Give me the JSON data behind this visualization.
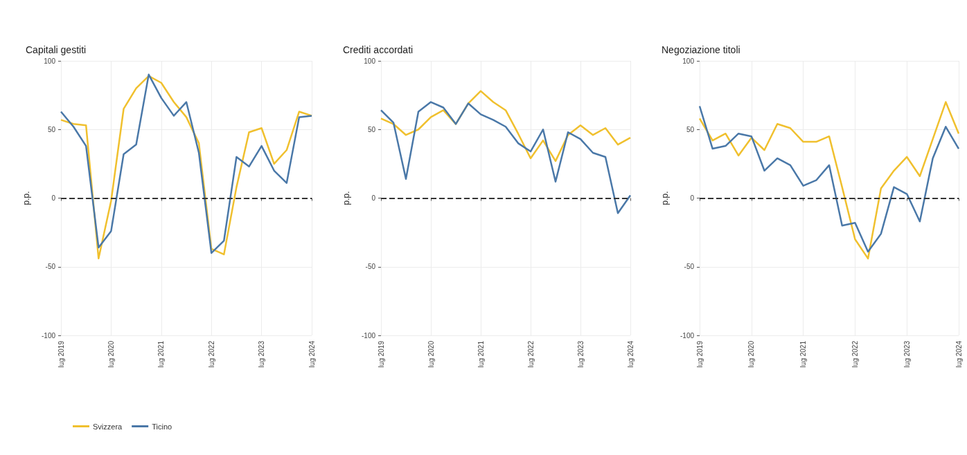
{
  "chart_data": [
    {
      "type": "line",
      "title": "Capitali gestiti",
      "ylabel": "p.p.",
      "categories": [
        "lug 2019",
        null,
        null,
        null,
        "lug 2020",
        null,
        null,
        null,
        "lug 2021",
        null,
        null,
        null,
        "lug 2022",
        null,
        null,
        null,
        "lug 2023",
        null,
        null,
        null,
        "lug 2024"
      ],
      "series": [
        {
          "name": "Svizzera",
          "color": "#f0c02e",
          "values": [
            57,
            54,
            53,
            -44,
            -2,
            65,
            80,
            89,
            84,
            70,
            59,
            40,
            -37,
            -41,
            8,
            48,
            51,
            25,
            35,
            63,
            60
          ]
        },
        {
          "name": "Ticino",
          "color": "#4a78a8",
          "values": [
            63,
            52,
            38,
            -36,
            -24,
            32,
            39,
            90,
            73,
            60,
            70,
            33,
            -40,
            -31,
            30,
            23,
            38,
            20,
            11,
            59,
            60
          ]
        }
      ],
      "ylim": [
        -100,
        100
      ],
      "yticks": [
        -100,
        -50,
        0,
        50,
        100
      ],
      "grid": true,
      "legend": "bottom left",
      "marker": "none",
      "line_style": "solid",
      "ref_lines": [
        {
          "axis": "y",
          "value": 0,
          "color": "#333333",
          "line_style": "dashed"
        }
      ]
    },
    {
      "type": "line",
      "title": "Crediti accordati",
      "ylabel": "p.p.",
      "categories": [
        "lug 2019",
        null,
        null,
        null,
        "lug 2020",
        null,
        null,
        null,
        "lug 2021",
        null,
        null,
        null,
        "lug 2022",
        null,
        null,
        null,
        "lug 2023",
        null,
        null,
        null,
        "lug 2024"
      ],
      "series": [
        {
          "color": "#f0c02e",
          "values": [
            58,
            54,
            46,
            50,
            59,
            64,
            54,
            69,
            78,
            70,
            64,
            47,
            29,
            42,
            27,
            46,
            53,
            46,
            51,
            39,
            44
          ]
        },
        {
          "color": "#4a78a8",
          "values": [
            64,
            55,
            14,
            63,
            70,
            66,
            54,
            69,
            61,
            57,
            52,
            40,
            34,
            50,
            12,
            48,
            43,
            33,
            30,
            -11,
            2
          ]
        }
      ],
      "ylim": [
        -100,
        100
      ],
      "yticks": [
        -100,
        -50,
        0,
        50,
        100
      ],
      "grid": true,
      "marker": "none",
      "line_style": "solid",
      "ref_lines": [
        {
          "axis": "y",
          "value": 0,
          "color": "#333333",
          "line_style": "dashed"
        }
      ]
    },
    {
      "type": "line",
      "title": "Negoziazione titoli",
      "ylabel": "p.p.",
      "categories": [
        "lug 2019",
        null,
        null,
        null,
        "lug 2020",
        null,
        null,
        null,
        "lug 2021",
        null,
        null,
        null,
        "lug 2022",
        null,
        null,
        null,
        "lug 2023",
        null,
        null,
        null,
        "lug 2024"
      ],
      "series": [
        {
          "color": "#f0c02e",
          "values": [
            58,
            42,
            47,
            31,
            44,
            35,
            54,
            51,
            41,
            41,
            45,
            8,
            -30,
            -44,
            7,
            20,
            30,
            16,
            43,
            70,
            47
          ]
        },
        {
          "color": "#4a78a8",
          "values": [
            67,
            36,
            38,
            47,
            45,
            20,
            29,
            24,
            9,
            13,
            24,
            -20,
            -18,
            -39,
            -26,
            8,
            3,
            -17,
            29,
            52,
            36
          ]
        }
      ],
      "ylim": [
        -100,
        100
      ],
      "yticks": [
        -100,
        -50,
        0,
        50,
        100
      ],
      "grid": true,
      "marker": "none",
      "line_style": "solid",
      "ref_lines": [
        {
          "axis": "y",
          "value": 0,
          "color": "#333333",
          "line_style": "dashed"
        }
      ]
    }
  ]
}
